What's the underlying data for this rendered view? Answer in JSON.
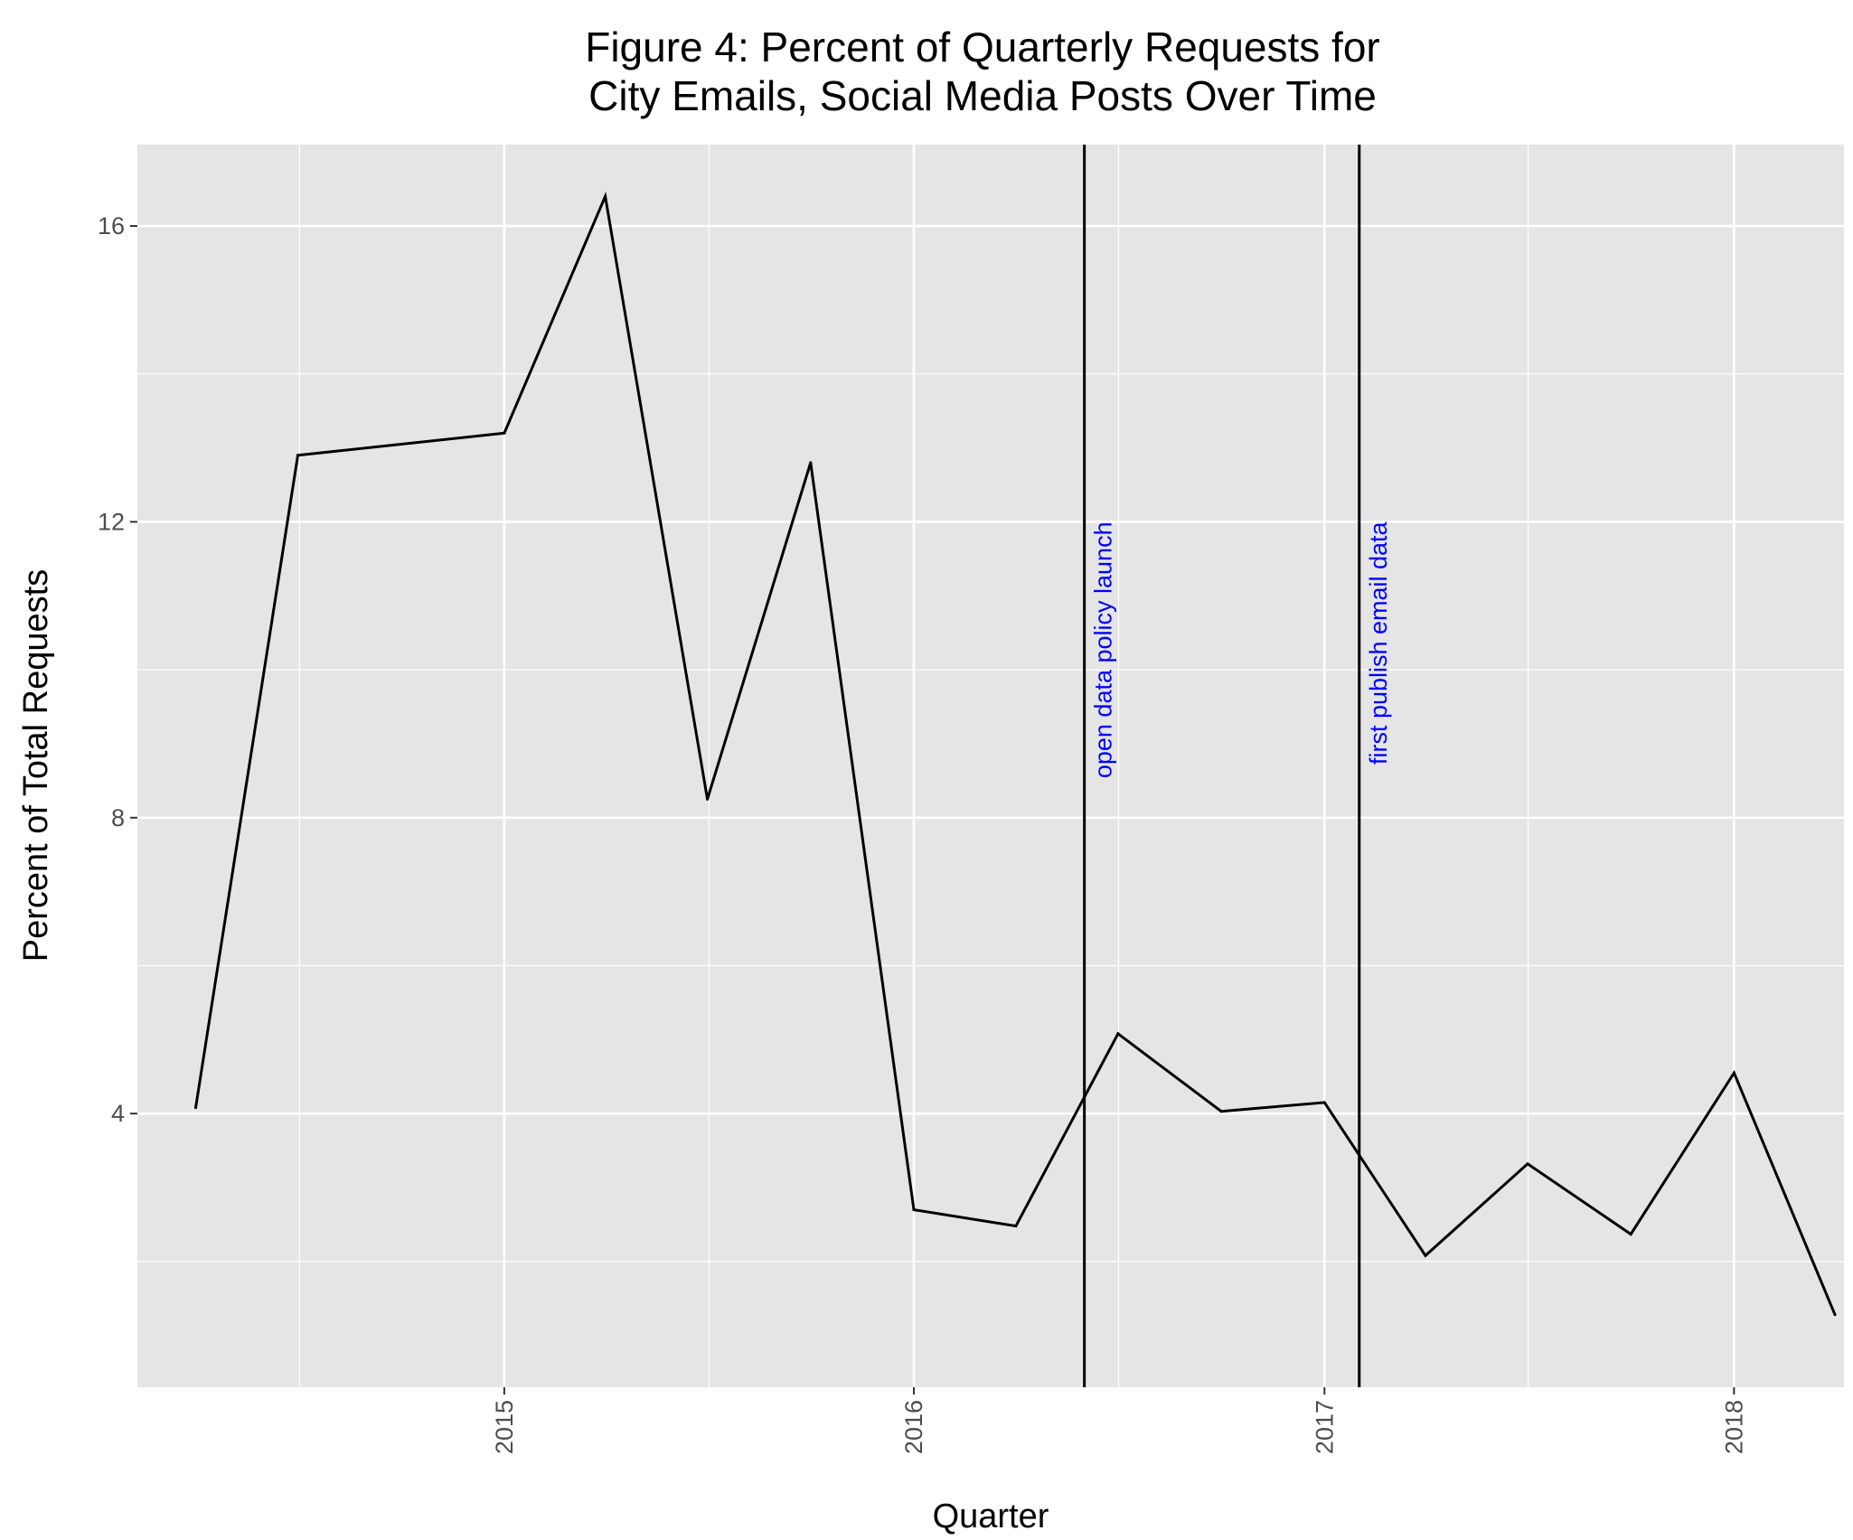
{
  "chart_data": {
    "type": "line",
    "title": [
      "Figure 4: Percent of Quarterly Requests for",
      "City Emails, Social Media Posts Over Time"
    ],
    "xlabel": "Quarter",
    "ylabel": "Percent of Total Requests",
    "xlim": [
      "2014-02-08",
      "2018-04-09"
    ],
    "ylim": [
      0.3,
      17.1
    ],
    "x_ticks": [
      {
        "date": "2015-01-01",
        "label": "2015"
      },
      {
        "date": "2016-01-01",
        "label": "2016"
      },
      {
        "date": "2017-01-01",
        "label": "2017"
      },
      {
        "date": "2018-01-01",
        "label": "2018"
      }
    ],
    "x_tick_label_rotation": -90,
    "y_ticks": [
      4,
      8,
      12,
      16
    ],
    "grid": true,
    "background": "#e5e5e5",
    "grid_color": "#ffffff",
    "line_color": "#000000",
    "series": [
      {
        "x": [
          "2014-04-01",
          "2014-07-01",
          "2015-01-01",
          "2015-04-01",
          "2015-07-01",
          "2015-10-01",
          "2016-01-01",
          "2016-04-01",
          "2016-07-01",
          "2016-10-01",
          "2017-01-01",
          "2017-04-01",
          "2017-07-01",
          "2017-10-01",
          "2018-01-01",
          "2018-04-01"
        ],
        "y": [
          4.08,
          12.9,
          13.2,
          16.4,
          8.25,
          12.8,
          2.7,
          2.48,
          5.08,
          4.03,
          4.15,
          2.08,
          3.32,
          2.37,
          4.55,
          1.28
        ]
      }
    ],
    "vlines": [
      {
        "date": "2016-06-01",
        "label": "open data policy launch",
        "label_color": "#0000ff"
      },
      {
        "date": "2017-02-01",
        "label": "first publish email data",
        "label_color": "#0000ff"
      }
    ]
  }
}
